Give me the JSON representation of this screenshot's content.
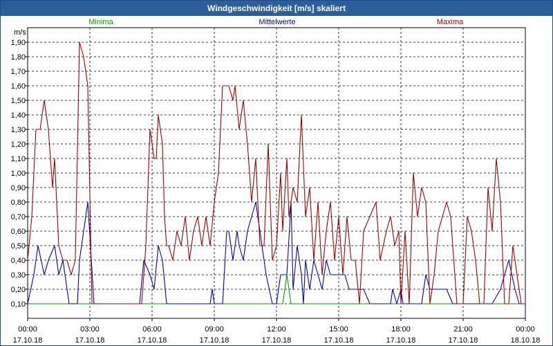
{
  "window": {
    "title": "Windgeschwindigkeit [m/s] skaliert"
  },
  "chart_data": {
    "type": "line",
    "title": "Windgeschwindigkeit [m/s] skaliert",
    "ylabel": "m/s",
    "xlabel": "",
    "ylim": [
      0.0,
      2.0
    ],
    "xlim": [
      0,
      24
    ],
    "grid": true,
    "legend_position": "top",
    "y_ticks": [
      "0,10",
      "0,20",
      "0,30",
      "0,40",
      "0,50",
      "0,60",
      "0,70",
      "0,80",
      "0,90",
      "1,00",
      "1,10",
      "1,20",
      "1,30",
      "1,40",
      "1,50",
      "1,60",
      "1,70",
      "1,80",
      "1,90"
    ],
    "x_ticks": [
      {
        "time": "00:00",
        "date": "17.10.18"
      },
      {
        "time": "03:00",
        "date": "17.10.18"
      },
      {
        "time": "06:00",
        "date": "17.10.18"
      },
      {
        "time": "09:00",
        "date": "17.10.18"
      },
      {
        "time": "12:00",
        "date": "17.10.18"
      },
      {
        "time": "15:00",
        "date": "17.10.18"
      },
      {
        "time": "18:00",
        "date": "17.10.18"
      },
      {
        "time": "21:00",
        "date": "17.10.18"
      },
      {
        "time": "00:00",
        "date": "18.10.18"
      }
    ],
    "series": [
      {
        "name": "Minima",
        "color": "#00a000",
        "x": [
          0,
          12.3,
          12.5,
          12.7,
          24
        ],
        "y": [
          0.1,
          0.1,
          0.3,
          0.1,
          0.1
        ]
      },
      {
        "name": "Mittelwerte",
        "color": "#0000c0",
        "x": [
          0,
          0.3,
          0.5,
          0.8,
          1.0,
          1.3,
          1.5,
          1.7,
          1.8,
          2.0,
          2.4,
          2.5,
          2.6,
          2.9,
          3.2,
          4.4,
          5.4,
          5.6,
          5.9,
          6.1,
          6.3,
          6.5,
          6.7,
          6.9,
          7.1,
          7.3,
          8.8,
          8.9,
          9.0,
          9.2,
          9.4,
          9.6,
          9.7,
          9.9,
          10.1,
          10.2,
          10.4,
          10.6,
          10.8,
          11.0,
          11.2,
          11.5,
          11.8,
          12.0,
          12.2,
          12.5,
          12.7,
          12.8,
          13.0,
          13.2,
          13.3,
          13.4,
          13.6,
          13.8,
          14.0,
          14.2,
          14.4,
          14.6,
          14.8,
          15.3,
          15.5,
          15.7,
          16.2,
          16.5,
          17.5,
          17.6,
          17.8,
          18.0,
          18.1,
          19.0,
          19.2,
          19.4,
          19.6,
          20.2,
          20.5,
          20.8,
          21.0,
          21.5,
          21.7,
          22.4,
          22.8,
          23.0,
          23.2,
          23.5,
          23.7,
          24.0
        ],
        "y": [
          0.1,
          0.3,
          0.5,
          0.3,
          0.4,
          0.5,
          0.3,
          0.4,
          0.3,
          0.1,
          0.1,
          0.4,
          0.5,
          0.8,
          0.1,
          0.1,
          0.1,
          0.4,
          0.3,
          0.2,
          0.5,
          0.4,
          0.1,
          0.1,
          0.1,
          0.1,
          0.1,
          0.2,
          0.1,
          0.1,
          0.1,
          0.6,
          0.6,
          0.4,
          0.6,
          0.5,
          0.4,
          0.6,
          0.7,
          0.8,
          0.6,
          0.3,
          0.1,
          0.1,
          0.3,
          0.3,
          0.8,
          0.2,
          0.5,
          0.3,
          0.1,
          0.4,
          0.2,
          0.4,
          0.3,
          0.2,
          0.4,
          0.3,
          0.3,
          0.3,
          0.2,
          0.2,
          0.2,
          0.1,
          0.1,
          0.2,
          0.1,
          0.2,
          0.1,
          0.1,
          0.3,
          0.2,
          0.2,
          0.2,
          0.1,
          0.1,
          0.1,
          0.1,
          0.1,
          0.1,
          0.2,
          0.3,
          0.4,
          0.2,
          0.1,
          0.1
        ]
      },
      {
        "name": "Maxima",
        "color": "#a00000",
        "x": [
          0,
          0.2,
          0.4,
          0.6,
          0.8,
          1.0,
          1.2,
          1.3,
          1.5,
          1.7,
          1.9,
          2.1,
          2.3,
          2.5,
          2.7,
          2.9,
          3.1,
          3.3,
          4.0,
          5.5,
          5.7,
          5.9,
          6.1,
          6.2,
          6.3,
          6.5,
          6.6,
          6.7,
          6.8,
          7.0,
          7.2,
          7.4,
          7.6,
          7.8,
          8.0,
          8.2,
          8.4,
          8.6,
          8.8,
          9.0,
          9.2,
          9.4,
          9.6,
          9.7,
          9.9,
          10.0,
          10.2,
          10.4,
          10.6,
          10.8,
          11.0,
          11.2,
          11.4,
          11.6,
          11.8,
          12.0,
          12.2,
          12.3,
          12.5,
          12.6,
          12.8,
          13.0,
          13.2,
          13.4,
          13.6,
          13.8,
          14.0,
          14.2,
          14.4,
          14.6,
          14.8,
          15.0,
          15.2,
          15.4,
          15.6,
          15.8,
          16.0,
          16.2,
          16.5,
          16.8,
          17.0,
          17.3,
          17.5,
          17.7,
          17.9,
          18.0,
          18.2,
          18.4,
          18.6,
          18.8,
          19.0,
          19.2,
          19.4,
          19.6,
          19.8,
          20.0,
          20.2,
          20.4,
          20.7,
          21.0,
          21.2,
          21.4,
          21.6,
          21.8,
          22.0,
          22.2,
          22.4,
          22.6,
          22.8,
          23.0,
          23.2,
          23.4,
          23.6,
          23.8,
          24.0
        ],
        "y": [
          0.4,
          0.7,
          1.3,
          1.3,
          1.5,
          1.3,
          0.9,
          1.1,
          0.5,
          0.4,
          0.4,
          0.3,
          0.4,
          1.9,
          1.8,
          1.6,
          0.1,
          0.1,
          0.1,
          0.1,
          0.5,
          1.3,
          1.1,
          1.1,
          1.4,
          1.2,
          0.7,
          0.5,
          0.5,
          0.4,
          0.6,
          0.5,
          0.7,
          0.4,
          0.6,
          0.7,
          0.5,
          0.7,
          0.5,
          0.8,
          1.0,
          1.6,
          1.6,
          1.6,
          1.5,
          1.6,
          1.3,
          1.5,
          1.2,
          0.8,
          1.1,
          0.5,
          0.5,
          1.2,
          0.4,
          0.5,
          1.0,
          0.6,
          1.1,
          0.7,
          0.9,
          0.8,
          1.4,
          0.7,
          0.9,
          0.4,
          0.8,
          0.3,
          0.6,
          0.8,
          0.4,
          0.7,
          0.3,
          0.7,
          0.4,
          0.4,
          0.1,
          0.6,
          0.7,
          0.8,
          0.4,
          0.6,
          0.7,
          0.5,
          0.6,
          0.1,
          0.6,
          0.1,
          1.0,
          0.7,
          0.9,
          0.8,
          0.1,
          0.3,
          0.6,
          0.7,
          0.8,
          0.7,
          0.1,
          0.1,
          0.7,
          0.6,
          0.4,
          0.1,
          0.1,
          0.9,
          0.6,
          1.1,
          0.8,
          0.1,
          0.1,
          0.5,
          0.3,
          0.1,
          0.1
        ]
      }
    ]
  }
}
